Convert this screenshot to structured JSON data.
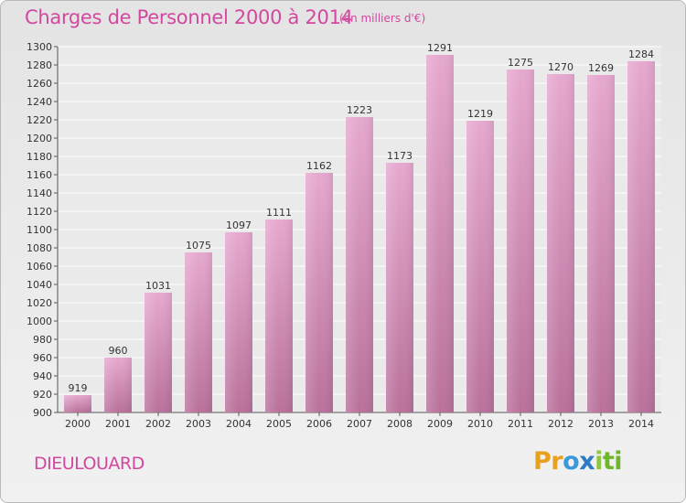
{
  "header": {
    "title": "Charges de Personnel 2000 à 2014",
    "subtitle": "(en milliers d'€)"
  },
  "footer": {
    "commune": "DIEULOUARD",
    "logo_letters": [
      "P",
      "r",
      "o",
      "x",
      "i",
      "t",
      "i"
    ],
    "logo_colors": [
      "#e8a020",
      "#e8a020",
      "#3a9ad9",
      "#2e7cc6",
      "#8cc63f",
      "#6fb52e",
      "#6fb52e"
    ]
  },
  "chart_data": {
    "type": "bar",
    "title": "Charges de Personnel 2000 à 2014",
    "subtitle": "(en milliers d'€)",
    "categories": [
      "2000",
      "2001",
      "2002",
      "2003",
      "2004",
      "2005",
      "2006",
      "2007",
      "2008",
      "2009",
      "2010",
      "2011",
      "2012",
      "2013",
      "2014"
    ],
    "values": [
      919,
      960,
      1031,
      1075,
      1097,
      1111,
      1162,
      1223,
      1173,
      1291,
      1219,
      1275,
      1270,
      1269,
      1284
    ],
    "ylim": [
      900,
      1300
    ],
    "yticks": [
      900,
      920,
      940,
      960,
      980,
      1000,
      1020,
      1040,
      1060,
      1080,
      1100,
      1120,
      1140,
      1160,
      1180,
      1200,
      1220,
      1240,
      1260,
      1280,
      1300
    ],
    "grid": true,
    "bar_color_top": "#e6a8cf",
    "bar_color_bottom": "#b9719b"
  }
}
